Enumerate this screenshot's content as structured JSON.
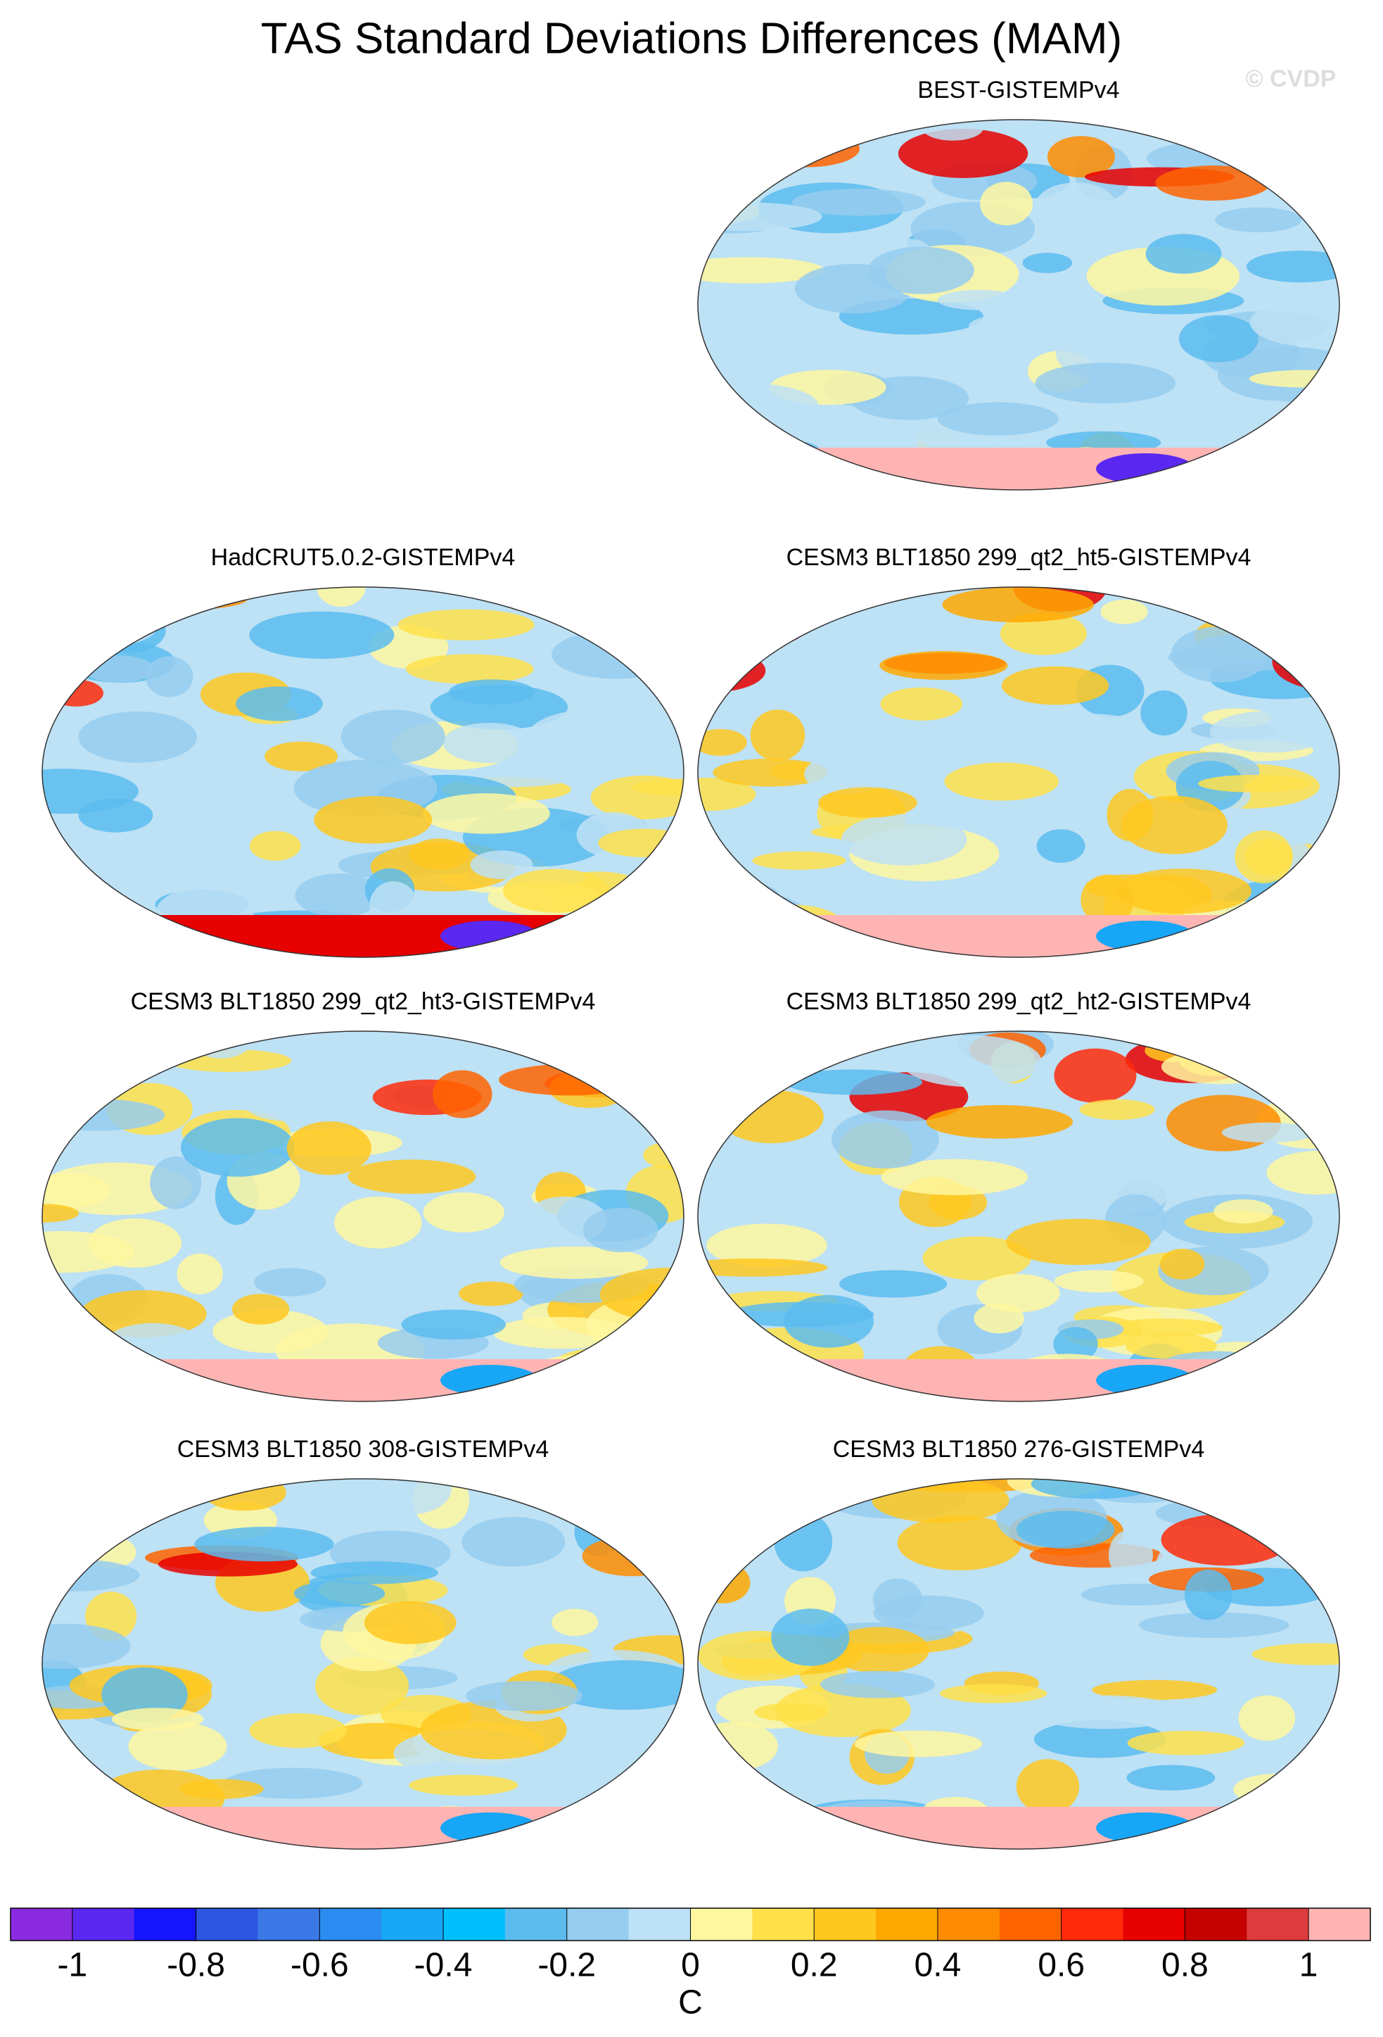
{
  "chart_data": {
    "type": "map-panels",
    "title": "TAS Standard Deviations Differences (MAM)",
    "watermark": "© CVDP",
    "panels": [
      {
        "title": "BEST-GISTEMPv4",
        "column": "right",
        "row": 0
      },
      {
        "title": "HadCRUT5.0.2-GISTEMPv4",
        "column": "left",
        "row": 1
      },
      {
        "title": "CESM3 BLT1850 299_qt2_ht5-GISTEMPv4",
        "column": "right",
        "row": 1
      },
      {
        "title": "CESM3 BLT1850 299_qt2_ht3-GISTEMPv4",
        "column": "left",
        "row": 2
      },
      {
        "title": "CESM3 BLT1850 299_qt2_ht2-GISTEMPv4",
        "column": "right",
        "row": 2
      },
      {
        "title": "CESM3 BLT1850 308-GISTEMPv4",
        "column": "left",
        "row": 3
      },
      {
        "title": "CESM3 BLT1850 276-GISTEMPv4",
        "column": "right",
        "row": 3
      }
    ],
    "colorbar": {
      "levels": [
        -1,
        -0.9,
        -0.8,
        -0.7,
        -0.6,
        -0.5,
        -0.4,
        -0.3,
        -0.2,
        -0.1,
        0,
        0.1,
        0.2,
        0.3,
        0.4,
        0.5,
        0.6,
        0.7,
        0.8,
        0.9,
        1
      ],
      "colors": [
        "#8a2be2",
        "#5a28f0",
        "#1414ff",
        "#2c55e0",
        "#3a78e6",
        "#2a8cf0",
        "#18a6f6",
        "#00bfff",
        "#5cbcee",
        "#96cdef",
        "#bde1f5",
        "#fff7a0",
        "#ffe04a",
        "#ffc820",
        "#ffa800",
        "#ff8c00",
        "#ff6400",
        "#ff2a0a",
        "#e60000",
        "#c40000",
        "#dc3c3c",
        "#ffb4b4"
      ],
      "ticks": [
        -1,
        -0.8,
        -0.6,
        -0.4,
        -0.2,
        0,
        0.2,
        0.4,
        0.6,
        0.8,
        1
      ],
      "label": "C"
    }
  }
}
